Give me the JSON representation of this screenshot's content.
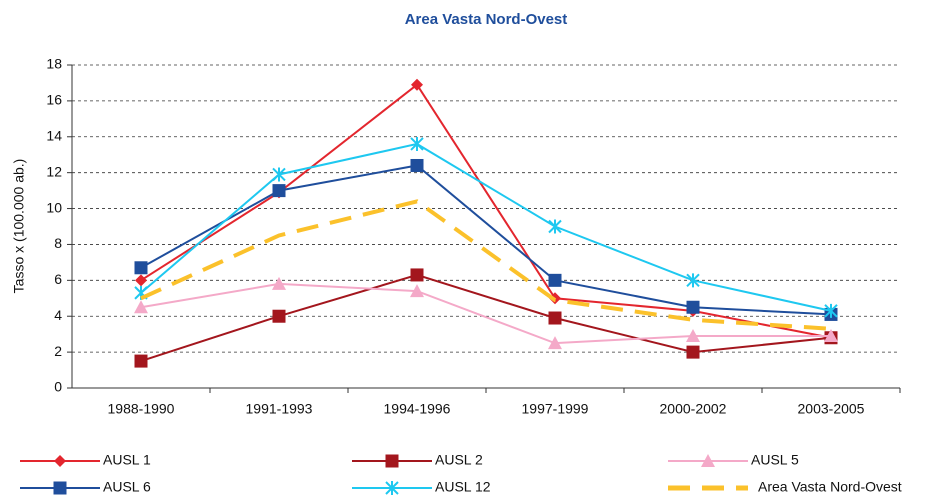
{
  "chart_data": {
    "type": "line",
    "title": "Area Vasta Nord-Ovest",
    "y_label": "Tasso x (100.000 ab.)",
    "categories": [
      "1988-1990",
      "1991-1993",
      "1994-1996",
      "1997-1999",
      "2000-2002",
      "2003-2005"
    ],
    "ylim": [
      0,
      18
    ],
    "yticks": [
      0,
      2,
      4,
      6,
      8,
      10,
      12,
      14,
      16,
      18
    ],
    "grid": true,
    "series": [
      {
        "name": "AUSL 1",
        "color": "#e3262e",
        "marker": "diamond",
        "values": [
          6.0,
          10.9,
          16.9,
          5.0,
          4.3,
          2.8
        ]
      },
      {
        "name": "AUSL 2",
        "color": "#a3161d",
        "marker": "square",
        "values": [
          1.5,
          4.0,
          6.3,
          3.9,
          2.0,
          2.8
        ]
      },
      {
        "name": "AUSL 5",
        "color": "#f4a9c8",
        "marker": "triangle",
        "values": [
          4.5,
          5.8,
          5.4,
          2.5,
          2.9,
          2.9
        ]
      },
      {
        "name": "AUSL 6",
        "color": "#1f4e9c",
        "marker": "square",
        "values": [
          6.7,
          11.0,
          12.4,
          6.0,
          4.5,
          4.1
        ]
      },
      {
        "name": "AUSL 12",
        "color": "#1ec8f0",
        "marker": "asterisk",
        "values": [
          5.3,
          11.9,
          13.6,
          9.0,
          6.0,
          4.3
        ]
      },
      {
        "name": "Area Vasta Nord-Ovest",
        "color": "#fbc12b",
        "marker": "none",
        "dashed": true,
        "values": [
          5.0,
          8.5,
          10.4,
          4.9,
          3.8,
          3.3
        ]
      }
    ]
  }
}
